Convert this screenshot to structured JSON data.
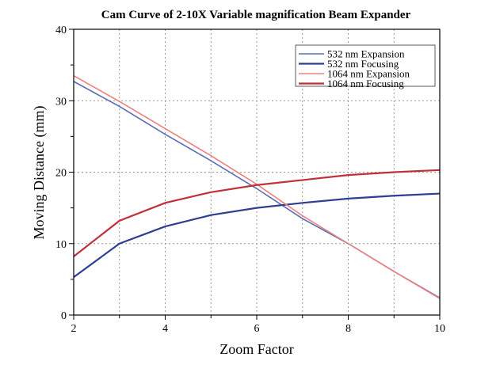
{
  "chart_data": {
    "type": "line",
    "title": "Cam Curve of 2-10X Variable magnification Beam Expander",
    "xlabel": "Zoom Factor",
    "ylabel": "Moving Distance (mm)",
    "xlim": [
      2,
      10
    ],
    "ylim": [
      0,
      40
    ],
    "xticks": [
      2,
      4,
      6,
      8,
      10
    ],
    "yticks": [
      0,
      10,
      20,
      30,
      40
    ],
    "grid": true,
    "legend_position": "top-right",
    "x": [
      2,
      3,
      4,
      5,
      6,
      7,
      8,
      9,
      10
    ],
    "series": [
      {
        "name": "532 nm Expansion",
        "color": "#5b6db3",
        "values": [
          32.7,
          29.2,
          25.3,
          21.6,
          17.7,
          13.5,
          10.0,
          6.1,
          2.4
        ]
      },
      {
        "name": "532 nm Focusing",
        "color": "#2e3f8f",
        "values": [
          5.3,
          10.0,
          12.4,
          14.0,
          15.0,
          15.7,
          16.3,
          16.7,
          17.0
        ]
      },
      {
        "name": "1064 nm Expansion",
        "color": "#ee8080",
        "values": [
          33.5,
          29.9,
          26.1,
          22.3,
          18.3,
          13.9,
          10.0,
          6.1,
          2.3
        ]
      },
      {
        "name": "1064 nm Focusing",
        "color": "#c0303a",
        "values": [
          8.2,
          13.2,
          15.7,
          17.2,
          18.2,
          18.9,
          19.6,
          20.0,
          20.3
        ]
      }
    ]
  }
}
